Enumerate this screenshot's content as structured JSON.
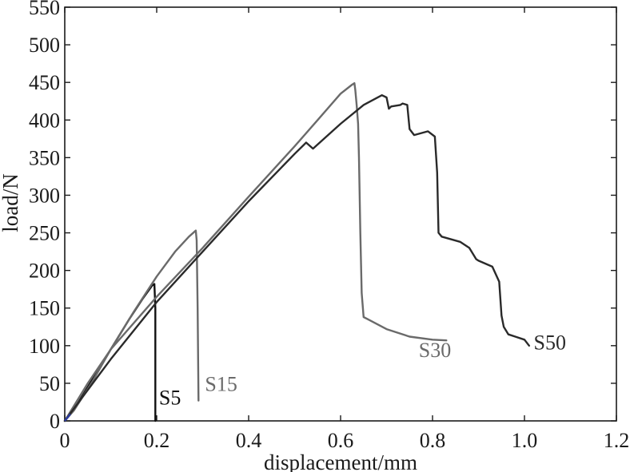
{
  "chart_data": {
    "type": "line",
    "title": "",
    "xlabel": "displacement/mm",
    "ylabel": "load/N",
    "xlim": [
      0,
      1.2
    ],
    "ylim": [
      0,
      550
    ],
    "xticks": [
      0,
      0.2,
      0.4,
      0.6,
      0.8,
      1.0,
      1.2
    ],
    "xtick_labels": [
      "0",
      "0.2",
      "0.4",
      "0.6",
      "0.8",
      "1.0",
      "1.2"
    ],
    "yticks": [
      0,
      50,
      100,
      150,
      200,
      250,
      300,
      350,
      400,
      450,
      500,
      550
    ],
    "ytick_labels": [
      "0",
      "50",
      "100",
      "150",
      "200",
      "250",
      "300",
      "350",
      "400",
      "450",
      "500",
      "550"
    ],
    "grid": false,
    "series": [
      {
        "name": "S5",
        "color": "#111111",
        "x": [
          0,
          0.02,
          0.06,
          0.1,
          0.14,
          0.17,
          0.19,
          0.195,
          0.197,
          0.197
        ],
        "y": [
          0,
          15,
          55,
          95,
          135,
          163,
          180,
          182,
          150,
          0
        ]
      },
      {
        "name": "S15",
        "color": "#6a6a6a",
        "x": [
          0,
          0.02,
          0.06,
          0.1,
          0.15,
          0.2,
          0.24,
          0.27,
          0.285,
          0.287,
          0.289,
          0.291
        ],
        "y": [
          0,
          14,
          52,
          95,
          145,
          192,
          225,
          245,
          253,
          240,
          150,
          27
        ]
      },
      {
        "name": "S30",
        "color": "#6a6a6a",
        "x": [
          0,
          0.05,
          0.1,
          0.2,
          0.3,
          0.4,
          0.5,
          0.55,
          0.6,
          0.625,
          0.63,
          0.632,
          0.635,
          0.638,
          0.64,
          0.643,
          0.646,
          0.65,
          0.66,
          0.7,
          0.75,
          0.8,
          0.83
        ],
        "y": [
          0,
          50,
          95,
          165,
          230,
          298,
          365,
          400,
          435,
          447,
          449,
          440,
          420,
          395,
          350,
          250,
          170,
          138,
          135,
          122,
          112,
          108,
          107
        ]
      },
      {
        "name": "S50",
        "color": "#2a2a2a",
        "x": [
          0,
          0.1,
          0.2,
          0.3,
          0.4,
          0.5,
          0.525,
          0.54,
          0.6,
          0.65,
          0.69,
          0.7,
          0.705,
          0.71,
          0.73,
          0.735,
          0.745,
          0.75,
          0.76,
          0.79,
          0.805,
          0.81,
          0.813,
          0.82,
          0.86,
          0.88,
          0.895,
          0.9,
          0.93,
          0.945,
          0.95,
          0.955,
          0.965,
          0.98,
          1.0,
          1.01
        ],
        "y": [
          0,
          82,
          158,
          225,
          292,
          355,
          370,
          362,
          395,
          420,
          433,
          430,
          415,
          418,
          420,
          422,
          420,
          388,
          380,
          385,
          378,
          330,
          250,
          245,
          238,
          230,
          215,
          213,
          205,
          185,
          140,
          125,
          115,
          112,
          108,
          100
        ]
      }
    ],
    "annotations": [
      {
        "text": "S5",
        "series": "S5"
      },
      {
        "text": "S15",
        "series": "S15"
      },
      {
        "text": "S30",
        "series": "S30"
      },
      {
        "text": "S50",
        "series": "S50"
      }
    ]
  }
}
